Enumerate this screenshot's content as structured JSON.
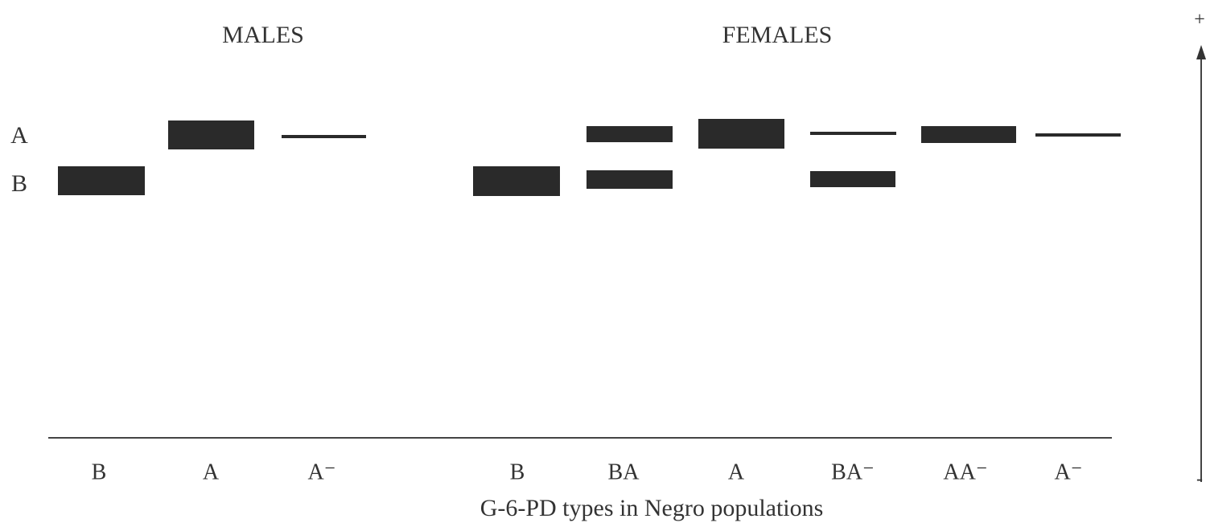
{
  "groups": [
    "MALES",
    "FEMALES"
  ],
  "rows": [
    "A",
    "B"
  ],
  "lanes": [
    "B",
    "A",
    "A⁻",
    "B",
    "BA",
    "A",
    "BA⁻",
    "AA⁻",
    "A⁻"
  ],
  "caption": "G-6-PD types in Negro populations",
  "polarity": {
    "positive": "+",
    "negative": "-"
  }
}
